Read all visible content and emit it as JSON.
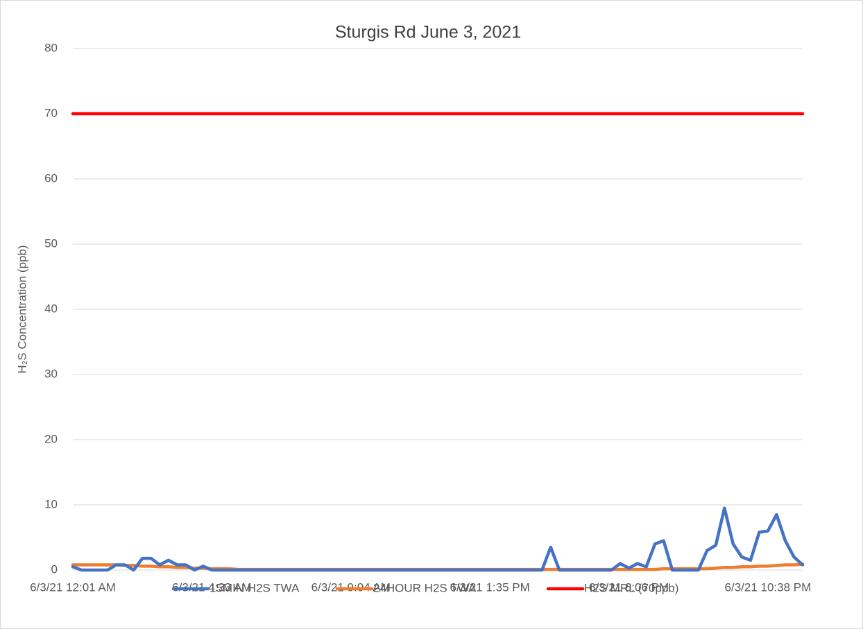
{
  "chart_data": {
    "type": "line",
    "title": "Sturgis Rd June 3, 2021",
    "y_label": "H₂S Concentration (ppb)",
    "categories": [
      "6/3/21 12:01 AM",
      null,
      null,
      null,
      null,
      null,
      null,
      null,
      null,
      null,
      null,
      null,
      null,
      null,
      null,
      null,
      "6/3/21 4:33 AM",
      null,
      null,
      null,
      null,
      null,
      null,
      null,
      null,
      null,
      null,
      null,
      null,
      null,
      null,
      null,
      "6/3/21 9:04 AM",
      null,
      null,
      null,
      null,
      null,
      null,
      null,
      null,
      null,
      null,
      null,
      null,
      null,
      null,
      null,
      "6/3/21 1:35 PM",
      null,
      null,
      null,
      null,
      null,
      null,
      null,
      null,
      null,
      null,
      null,
      null,
      null,
      null,
      null,
      "6/3/21 6:06 PM",
      null,
      null,
      null,
      null,
      null,
      null,
      null,
      null,
      null,
      null,
      null,
      null,
      null,
      null,
      null,
      "6/3/21 10:38 PM",
      null,
      null,
      null,
      null
    ],
    "series": [
      {
        "name": "15MIN H2S TWA",
        "color": "#4472c4",
        "values": [
          0.5,
          0,
          0,
          0,
          0,
          0.8,
          0.8,
          0,
          1.8,
          1.8,
          0.8,
          1.5,
          0.8,
          0.8,
          0,
          0.6,
          0,
          0,
          0,
          0,
          0,
          0,
          0,
          0,
          0,
          0,
          0,
          0,
          0,
          0,
          0,
          0,
          0,
          0,
          0,
          0,
          0,
          0,
          0,
          0,
          0,
          0,
          0,
          0,
          0,
          0,
          0,
          0,
          0,
          0,
          0,
          0,
          0,
          0,
          0,
          3.5,
          0,
          0,
          0,
          0,
          0,
          0,
          0,
          1,
          0.3,
          1,
          0.5,
          4,
          4.5,
          0,
          0,
          0,
          0,
          3,
          3.8,
          9.5,
          4,
          2,
          1.5,
          5.8,
          6,
          8.5,
          4.5,
          2,
          0.8
        ]
      },
      {
        "name": "24HOUR H2S TWA",
        "color": "#ed7d31",
        "values": [
          0.8,
          0.8,
          0.8,
          0.8,
          0.8,
          0.8,
          0.7,
          0.7,
          0.6,
          0.6,
          0.5,
          0.5,
          0.4,
          0.4,
          0.3,
          0.3,
          0.2,
          0.2,
          0.2,
          0.1,
          0.1,
          0.1,
          0.1,
          0.1,
          0.1,
          0.1,
          0.1,
          0.1,
          0.1,
          0.1,
          0.1,
          0.1,
          0.1,
          0.1,
          0.1,
          0.1,
          0.1,
          0.1,
          0.1,
          0.1,
          0.1,
          0.1,
          0.1,
          0.1,
          0.1,
          0.1,
          0.1,
          0.1,
          0.1,
          0.1,
          0.1,
          0.1,
          0.1,
          0.1,
          0.1,
          0.1,
          0.1,
          0.1,
          0.1,
          0.1,
          0.1,
          0.1,
          0.1,
          0.1,
          0.1,
          0.1,
          0.1,
          0.1,
          0.2,
          0.2,
          0.2,
          0.2,
          0.2,
          0.2,
          0.3,
          0.4,
          0.4,
          0.5,
          0.5,
          0.6,
          0.6,
          0.7,
          0.8,
          0.8,
          0.9
        ]
      },
      {
        "name": "H2S MRL (70ppb)",
        "color": "#ff0000",
        "values": [
          70,
          70,
          70,
          70,
          70,
          70,
          70,
          70,
          70,
          70,
          70,
          70,
          70,
          70,
          70,
          70,
          70,
          70,
          70,
          70,
          70,
          70,
          70,
          70,
          70,
          70,
          70,
          70,
          70,
          70,
          70,
          70,
          70,
          70,
          70,
          70,
          70,
          70,
          70,
          70,
          70,
          70,
          70,
          70,
          70,
          70,
          70,
          70,
          70,
          70,
          70,
          70,
          70,
          70,
          70,
          70,
          70,
          70,
          70,
          70,
          70,
          70,
          70,
          70,
          70,
          70,
          70,
          70,
          70,
          70,
          70,
          70,
          70,
          70,
          70,
          70,
          70,
          70,
          70,
          70,
          70,
          70,
          70,
          70,
          70
        ]
      }
    ],
    "ylim": [
      0,
      80
    ],
    "yticks": [
      0,
      10,
      20,
      30,
      40,
      50,
      60,
      70,
      80
    ],
    "grid": true,
    "legend": "bottom"
  }
}
